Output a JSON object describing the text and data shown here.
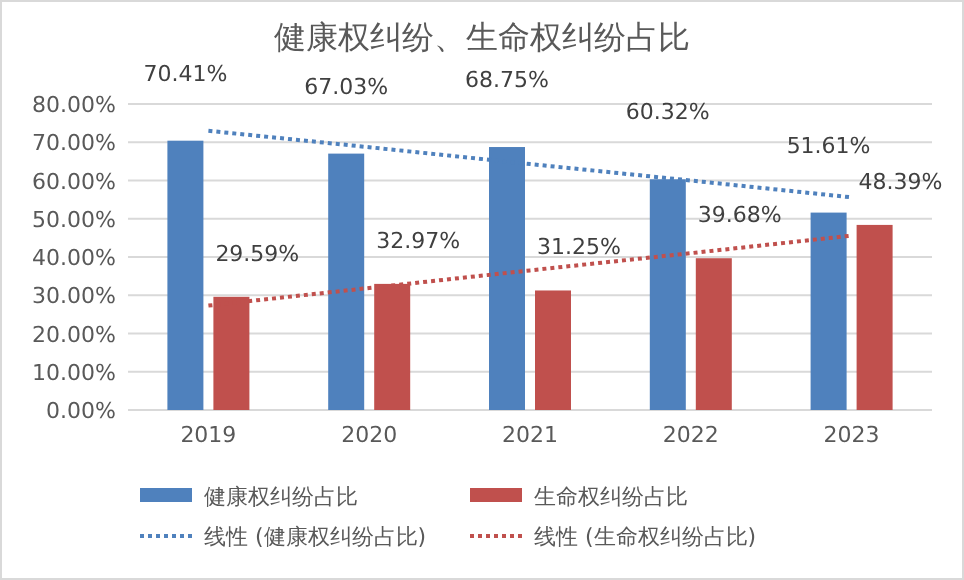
{
  "chart_data": {
    "type": "bar",
    "title": "健康权纠纷、生命权纠纷占比",
    "categories": [
      "2019",
      "2020",
      "2021",
      "2022",
      "2023"
    ],
    "series": [
      {
        "name": "健康权纠纷占比",
        "color": "#4f81bd",
        "values": [
          70.41,
          67.03,
          68.75,
          60.32,
          51.61
        ],
        "value_labels": [
          "70.41%",
          "67.03%",
          "68.75%",
          "60.32%",
          "51.61%"
        ]
      },
      {
        "name": "生命权纠纷占比",
        "color": "#c0504d",
        "values": [
          29.59,
          32.97,
          31.25,
          39.68,
          48.39
        ],
        "value_labels": [
          "29.59%",
          "32.97%",
          "31.25%",
          "39.68%",
          "48.39%"
        ]
      },
      {
        "name": "线性 (健康权纠纷占比)",
        "type": "line",
        "color": "#4f81bd",
        "line_style": "dotted",
        "values": [
          73.0,
          68.7,
          64.3,
          60.0,
          55.6
        ]
      },
      {
        "name": "线性 (生命权纠纷占比)",
        "type": "line",
        "color": "#c0504d",
        "line_style": "dotted",
        "values": [
          27.3,
          31.9,
          36.5,
          41.0,
          45.6
        ]
      }
    ],
    "ylim": [
      0,
      80
    ],
    "yticks": [
      {
        "value": 0,
        "label": "0.00%"
      },
      {
        "value": 10,
        "label": "10.00%"
      },
      {
        "value": 20,
        "label": "20.00%"
      },
      {
        "value": 30,
        "label": "30.00%"
      },
      {
        "value": 40,
        "label": "40.00%"
      },
      {
        "value": 50,
        "label": "50.00%"
      },
      {
        "value": 60,
        "label": "60.00%"
      },
      {
        "value": 70,
        "label": "70.00%"
      },
      {
        "value": 80,
        "label": "80.00%"
      }
    ],
    "grid": "y",
    "legend": "bottom"
  }
}
